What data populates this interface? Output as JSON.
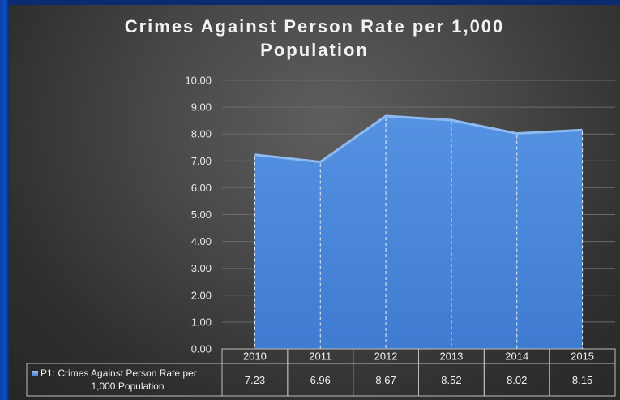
{
  "chart_data": {
    "type": "area",
    "title_lines": [
      "Crimes Against Person Rate per 1,000",
      "Population"
    ],
    "categories": [
      "2010",
      "2011",
      "2012",
      "2013",
      "2014",
      "2015"
    ],
    "series": [
      {
        "name_lines": [
          "P1: Crimes Against Person Rate per",
          "1,000 Population"
        ],
        "values": [
          7.23,
          6.96,
          8.67,
          8.52,
          8.02,
          8.15
        ],
        "value_labels": [
          "7.23",
          "6.96",
          "8.67",
          "8.52",
          "8.02",
          "8.15"
        ],
        "color": "#4a86d8"
      }
    ],
    "y_ticks": [
      "0.00",
      "1.00",
      "2.00",
      "3.00",
      "4.00",
      "5.00",
      "6.00",
      "7.00",
      "8.00",
      "9.00",
      "10.00"
    ],
    "ylim": [
      0,
      10
    ],
    "grid": true,
    "data_table": true
  },
  "colors": {
    "background": "#3a3a3a",
    "area_fill": "#4a86d8",
    "area_top_highlight": "#8fbaf0",
    "text": "#f0f0f0"
  }
}
